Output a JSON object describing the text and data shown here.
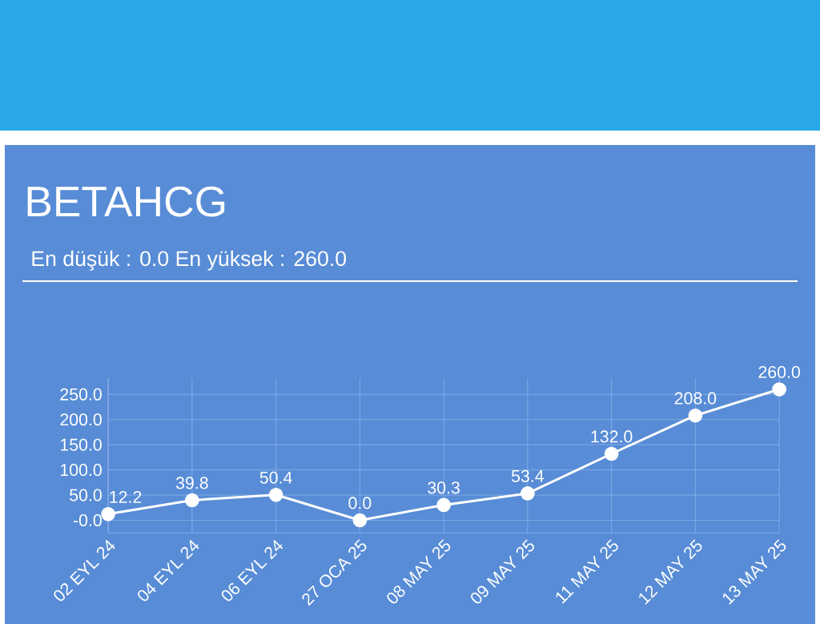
{
  "chart_data": {
    "type": "line",
    "title": "BETAHCG",
    "subtitle": "En düşük : 0.0 En yüksek : 260.0",
    "categories": [
      "02 EYL 24",
      "04 EYL 24",
      "06 EYL 24",
      "27 OCA 25",
      "08 MAY 25",
      "09 MAY 25",
      "11 MAY 25",
      "12 MAY 25",
      "13 MAY 25"
    ],
    "values": [
      12.2,
      39.8,
      50.4,
      0.0,
      30.3,
      53.4,
      132.0,
      208.0,
      260.0
    ],
    "value_labels": [
      "12.2",
      "39.8",
      "50.4",
      "0.0",
      "30.3",
      "53.4",
      "132.0",
      "208.0",
      "260.0"
    ],
    "color": "#ffffff",
    "marker": "circle",
    "line_style": "solid",
    "grid": true,
    "ylim": [
      -25,
      282
    ],
    "yticks": [
      {
        "value": 0,
        "label": "-0.0"
      },
      {
        "value": 50,
        "label": "50.0"
      },
      {
        "value": 100,
        "label": "100.0"
      },
      {
        "value": 150,
        "label": "150.0"
      },
      {
        "value": 200,
        "label": "200.0"
      },
      {
        "value": 250,
        "label": "250.0"
      }
    ]
  }
}
